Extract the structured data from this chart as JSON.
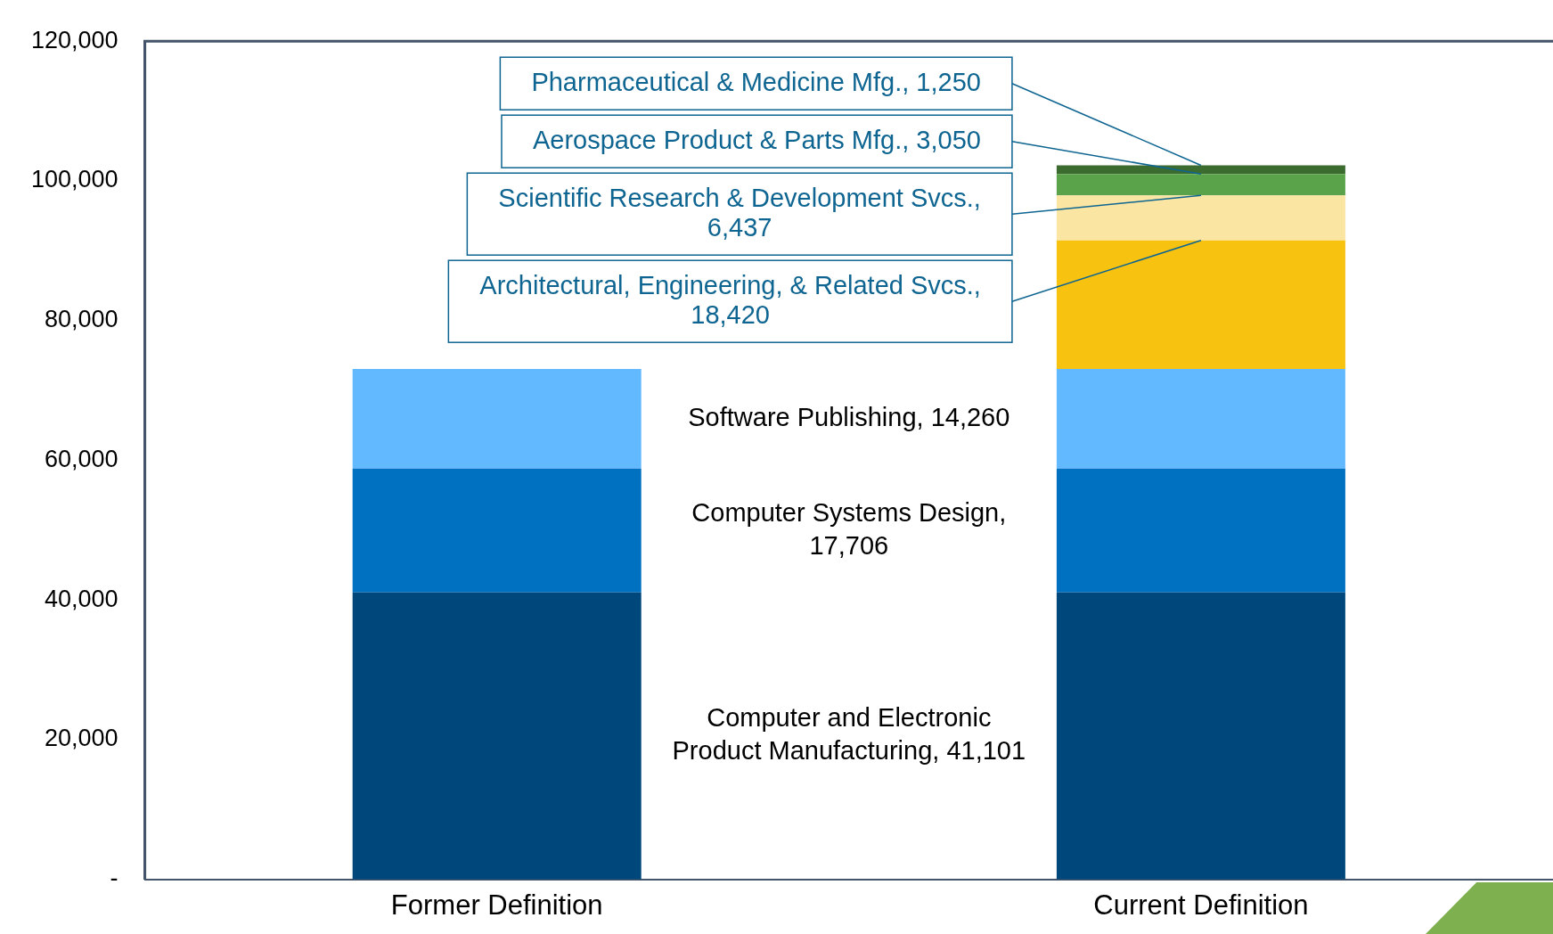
{
  "chart_data": {
    "type": "bar",
    "stacked": true,
    "categories": [
      "Former Definition",
      "Current Definition"
    ],
    "ylim": [
      0,
      120000
    ],
    "yticks": [
      {
        "value": 0,
        "label": "-"
      },
      {
        "value": 20000,
        "label": "20,000"
      },
      {
        "value": 40000,
        "label": "40,000"
      },
      {
        "value": 60000,
        "label": "60,000"
      },
      {
        "value": 80000,
        "label": "80,000"
      },
      {
        "value": 100000,
        "label": "100,000"
      },
      {
        "value": 120000,
        "label": "120,000"
      }
    ],
    "grid": false,
    "legend": false,
    "series": [
      {
        "color": "#00487c",
        "values": [
          41101,
          41101
        ]
      },
      {
        "color": "#0070c0",
        "values": [
          17706,
          17706
        ]
      },
      {
        "color": "#63b9ff",
        "values": [
          14260,
          14260
        ]
      },
      {
        "color": "#f8c211",
        "values": [
          null,
          18420
        ]
      },
      {
        "color": "#fbe5a2",
        "values": [
          null,
          6437
        ]
      },
      {
        "color": "#5aa34a",
        "values": [
          null,
          3050
        ]
      },
      {
        "color": "#3c6b30",
        "values": [
          null,
          1250
        ]
      }
    ],
    "annotations": [
      "Computer and Electronic Product Manufacturing, 41,101",
      "Computer Systems Design, 17,706",
      "Software Publishing, 14,260",
      {
        "text": "Architectural, Engineering, & Related Svcs., 18,420",
        "x": "Current Definition",
        "y": 91487
      },
      {
        "text": "Scientific Research & Development Svcs., 6,437",
        "x": "Current Definition",
        "y": 97924
      },
      {
        "text": "Aerospace Product & Parts Mfg., 3,050",
        "x": "Current Definition",
        "y": 100974
      },
      {
        "text": "Pharmaceutical & Medicine Mfg., 1,250",
        "x": "Current Definition",
        "y": 102224
      }
    ]
  }
}
